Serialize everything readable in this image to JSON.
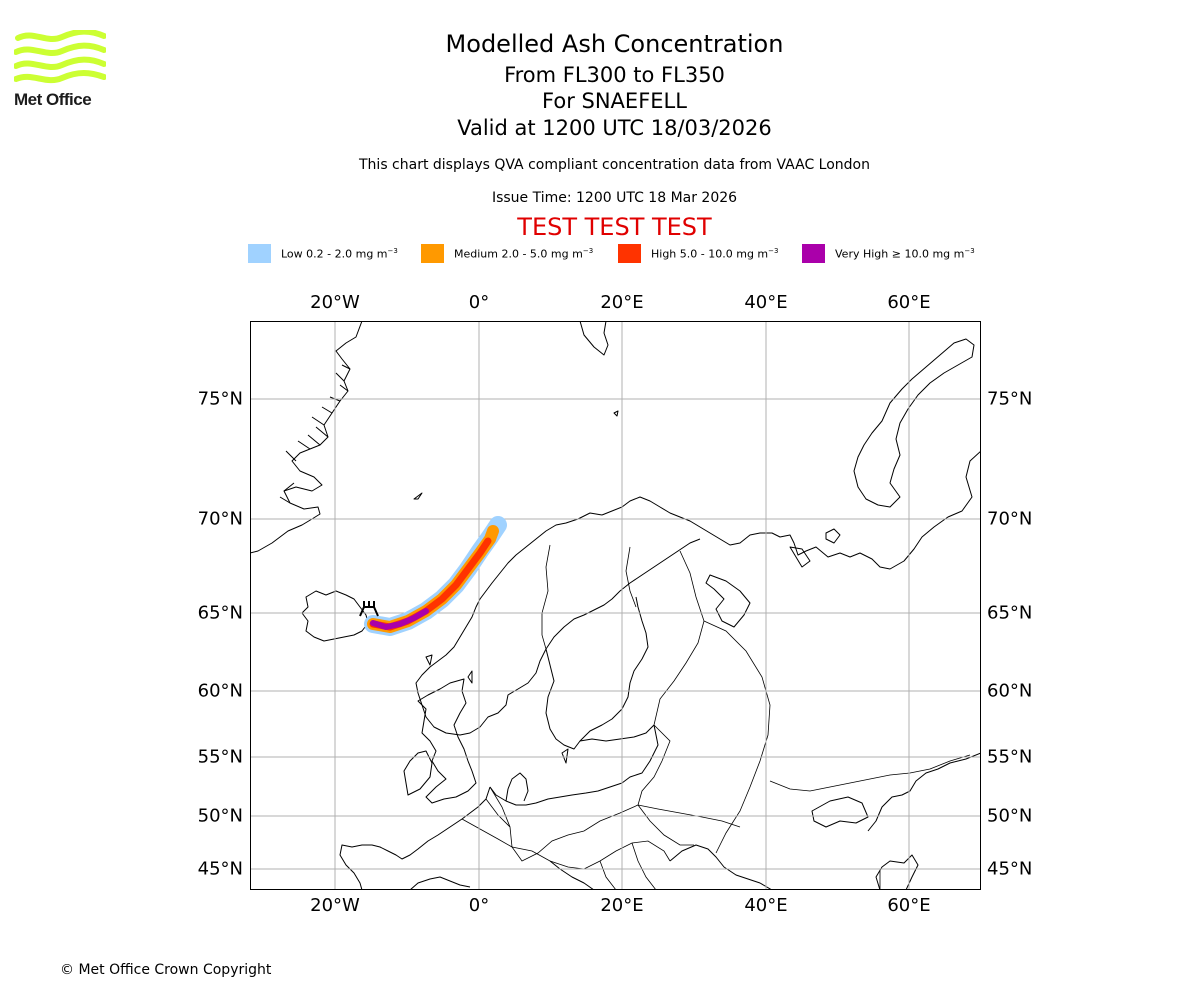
{
  "header": {
    "title": "Modelled Ash Concentration",
    "flight_levels": "From FL300 to FL350",
    "volcano": "For SNAEFELL",
    "valid": "Valid at 1200 UTC 18/03/2026",
    "description": "This chart displays QVA compliant concentration data from VAAC London",
    "issue_time": "Issue Time: 1200 UTC 18 Mar 2026",
    "test_banner": "TEST TEST TEST"
  },
  "logo": {
    "text": "Met Office",
    "color": "#ccff33"
  },
  "legend": [
    {
      "label": "Low 0.2 - 2.0 mg m",
      "exp": "−3",
      "color": "#a0d2ff"
    },
    {
      "label": "Medium 2.0 - 5.0 mg m",
      "exp": "−3",
      "color": "#ff9900"
    },
    {
      "label": "High 5.0 - 10.0 mg m",
      "exp": "−3",
      "color": "#ff3300"
    },
    {
      "label": "Very High  ≥  10.0 mg m",
      "exp": "−3",
      "color": "#aa00aa"
    }
  ],
  "map": {
    "longitude_ticks": [
      "20°W",
      "0°",
      "20°E",
      "40°E",
      "60°E"
    ],
    "latitude_ticks": [
      "75°N",
      "70°N",
      "65°N",
      "60°N",
      "55°N",
      "50°N",
      "45°N"
    ],
    "grid": true,
    "ash_plume": {
      "source": "SNAEFELL",
      "source_lat": 64.8,
      "source_lon": -15.6,
      "direction": "north-east towards Norwegian Sea"
    }
  },
  "footer": {
    "copyright": "© Met Office Crown Copyright"
  }
}
